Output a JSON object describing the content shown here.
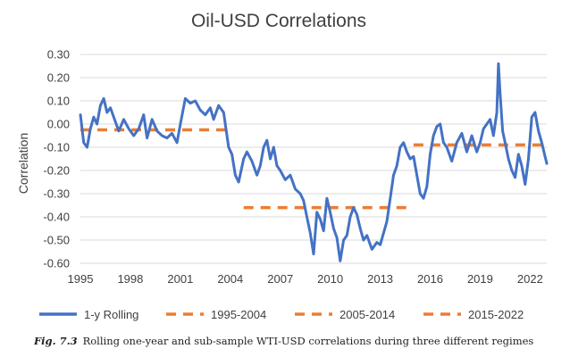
{
  "chart_data": {
    "type": "line",
    "title": "Oil-USD Correlations",
    "xlabel": "",
    "ylabel": "Correlation",
    "xlim": [
      1995,
      2023
    ],
    "ylim": [
      -0.6,
      0.3
    ],
    "y_ticks": [
      0.3,
      0.2,
      0.1,
      0.0,
      -0.1,
      -0.2,
      -0.3,
      -0.4,
      -0.5,
      -0.6
    ],
    "y_tick_labels": [
      "0.30",
      "0.20",
      "0.10",
      "0.00",
      "-0.10",
      "-0.20",
      "-0.30",
      "-0.40",
      "-0.50",
      "-0.60"
    ],
    "x_ticks": [
      1995,
      1998,
      2001,
      2004,
      2007,
      2010,
      2013,
      2016,
      2019,
      2022
    ],
    "x_tick_labels": [
      "1995",
      "1998",
      "2001",
      "2004",
      "2007",
      "2010",
      "2013",
      "2016",
      "2019",
      "2022"
    ],
    "grid": "horizontal",
    "legend_position": "bottom",
    "rolling_series": {
      "name": "1-y Rolling",
      "color": "#4472C4",
      "x": [
        1995.0,
        1995.2,
        1995.4,
        1995.6,
        1995.8,
        1996.0,
        1996.2,
        1996.4,
        1996.6,
        1996.8,
        1997.0,
        1997.3,
        1997.6,
        1997.9,
        1998.2,
        1998.5,
        1998.8,
        1999.0,
        1999.3,
        1999.6,
        1999.9,
        2000.2,
        2000.5,
        2000.8,
        2001.0,
        2001.3,
        2001.6,
        2001.9,
        2002.2,
        2002.5,
        2002.8,
        2003.0,
        2003.3,
        2003.6,
        2003.9,
        2004.1,
        2004.3,
        2004.5,
        2004.8,
        2005.0,
        2005.3,
        2005.6,
        2005.8,
        2006.0,
        2006.2,
        2006.4,
        2006.6,
        2006.8,
        2007.0,
        2007.3,
        2007.6,
        2007.9,
        2008.2,
        2008.4,
        2008.6,
        2008.8,
        2009.0,
        2009.2,
        2009.4,
        2009.6,
        2009.8,
        2010.0,
        2010.2,
        2010.4,
        2010.6,
        2010.8,
        2011.0,
        2011.2,
        2011.4,
        2011.6,
        2011.8,
        2012.0,
        2012.2,
        2012.5,
        2012.8,
        2013.0,
        2013.2,
        2013.4,
        2013.6,
        2013.8,
        2014.0,
        2014.2,
        2014.4,
        2014.6,
        2014.8,
        2015.0,
        2015.2,
        2015.4,
        2015.6,
        2015.8,
        2016.0,
        2016.2,
        2016.4,
        2016.6,
        2016.8,
        2017.0,
        2017.3,
        2017.6,
        2017.9,
        2018.2,
        2018.5,
        2018.8,
        2019.0,
        2019.2,
        2019.4,
        2019.6,
        2019.8,
        2020.0,
        2020.1,
        2020.2,
        2020.35,
        2020.5,
        2020.7,
        2020.9,
        2021.1,
        2021.3,
        2021.5,
        2021.7,
        2021.9,
        2022.1,
        2022.3,
        2022.5,
        2022.7,
        2022.9,
        2023.0
      ],
      "y": [
        0.04,
        -0.08,
        -0.1,
        -0.02,
        0.03,
        0.0,
        0.08,
        0.11,
        0.05,
        0.07,
        0.03,
        -0.03,
        0.02,
        -0.02,
        -0.05,
        -0.02,
        0.04,
        -0.06,
        0.02,
        -0.03,
        -0.05,
        -0.06,
        -0.04,
        -0.08,
        0.0,
        0.11,
        0.09,
        0.1,
        0.06,
        0.04,
        0.07,
        0.02,
        0.08,
        0.05,
        -0.1,
        -0.13,
        -0.22,
        -0.25,
        -0.15,
        -0.12,
        -0.16,
        -0.22,
        -0.18,
        -0.1,
        -0.07,
        -0.15,
        -0.1,
        -0.18,
        -0.2,
        -0.24,
        -0.22,
        -0.28,
        -0.3,
        -0.33,
        -0.4,
        -0.47,
        -0.56,
        -0.38,
        -0.41,
        -0.46,
        -0.32,
        -0.38,
        -0.45,
        -0.49,
        -0.59,
        -0.5,
        -0.48,
        -0.4,
        -0.36,
        -0.39,
        -0.45,
        -0.5,
        -0.48,
        -0.54,
        -0.51,
        -0.52,
        -0.47,
        -0.42,
        -0.32,
        -0.22,
        -0.18,
        -0.1,
        -0.08,
        -0.12,
        -0.15,
        -0.14,
        -0.22,
        -0.3,
        -0.32,
        -0.27,
        -0.13,
        -0.05,
        -0.01,
        0.0,
        -0.08,
        -0.1,
        -0.16,
        -0.08,
        -0.04,
        -0.12,
        -0.05,
        -0.12,
        -0.08,
        -0.02,
        0.0,
        0.02,
        -0.05,
        0.05,
        0.26,
        0.13,
        -0.03,
        -0.08,
        -0.15,
        -0.2,
        -0.23,
        -0.13,
        -0.18,
        -0.26,
        -0.15,
        0.03,
        0.05,
        -0.03,
        -0.08,
        -0.14,
        -0.17
      ]
    },
    "regimes": [
      {
        "name": "1995-2004",
        "x_start": 1995.0,
        "x_end": 2004.0,
        "value": -0.025,
        "color": "#ED7D31"
      },
      {
        "name": "2005-2014",
        "x_start": 2004.8,
        "x_end": 2014.9,
        "value": -0.36,
        "color": "#ED7D31"
      },
      {
        "name": "2015-2022",
        "x_start": 2015.0,
        "x_end": 2023.0,
        "value": -0.09,
        "color": "#ED7D31"
      }
    ]
  },
  "caption": {
    "label": "Fig. 7.3",
    "text": "Rolling one-year and sub-sample WTI-USD correlations during three different regimes"
  }
}
